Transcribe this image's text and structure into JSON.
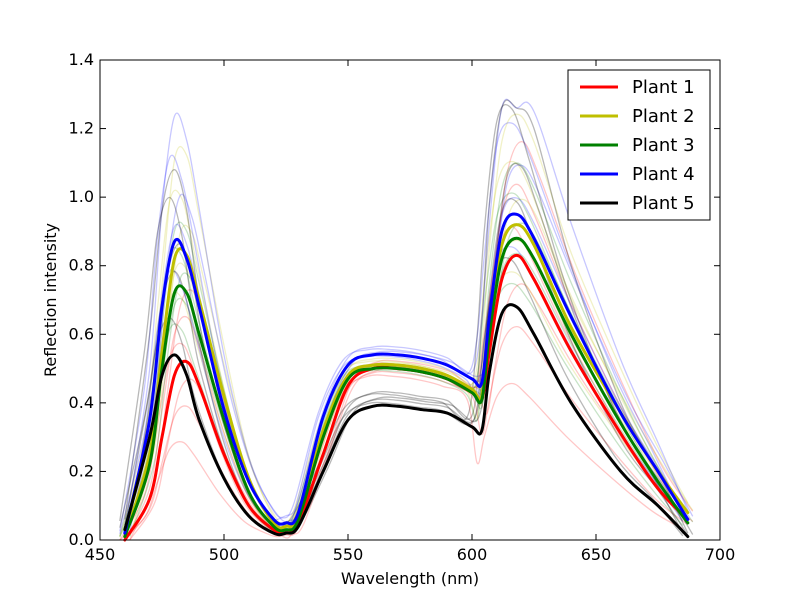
{
  "chart_data": {
    "type": "line",
    "xlabel": "Wavelength (nm)",
    "ylabel": "Reflection intensity",
    "xlim": [
      450,
      700
    ],
    "ylim": [
      0.0,
      1.4
    ],
    "x_ticks": [
      "450",
      "500",
      "550",
      "600",
      "650",
      "700"
    ],
    "y_ticks": [
      "0.0",
      "0.2",
      "0.4",
      "0.6",
      "0.8",
      "1.0",
      "1.2",
      "1.4"
    ],
    "grid": false,
    "legend_position": "top-right",
    "x": [
      460,
      470,
      475,
      480,
      485,
      490,
      500,
      510,
      520,
      525,
      530,
      540,
      550,
      560,
      570,
      580,
      590,
      600,
      604,
      607,
      612,
      618,
      625,
      640,
      660,
      675,
      687
    ],
    "series": [
      {
        "name": "Plant 1",
        "color": "#ff0000",
        "values": [
          0.0,
          0.12,
          0.3,
          0.48,
          0.52,
          0.45,
          0.25,
          0.1,
          0.03,
          0.02,
          0.05,
          0.25,
          0.45,
          0.5,
          0.5,
          0.49,
          0.47,
          0.43,
          0.41,
          0.55,
          0.76,
          0.83,
          0.76,
          0.55,
          0.31,
          0.15,
          0.06
        ]
      },
      {
        "name": "Plant 2",
        "color": "#bfbf00",
        "values": [
          0.01,
          0.25,
          0.55,
          0.82,
          0.83,
          0.7,
          0.42,
          0.18,
          0.05,
          0.04,
          0.07,
          0.32,
          0.48,
          0.51,
          0.51,
          0.5,
          0.48,
          0.44,
          0.42,
          0.63,
          0.86,
          0.92,
          0.86,
          0.62,
          0.37,
          0.2,
          0.08
        ]
      },
      {
        "name": "Plant 3",
        "color": "#008000",
        "values": [
          0.01,
          0.22,
          0.5,
          0.72,
          0.72,
          0.6,
          0.35,
          0.14,
          0.04,
          0.03,
          0.06,
          0.3,
          0.47,
          0.5,
          0.5,
          0.49,
          0.47,
          0.43,
          0.41,
          0.6,
          0.82,
          0.88,
          0.82,
          0.6,
          0.34,
          0.17,
          0.05
        ]
      },
      {
        "name": "Plant 4",
        "color": "#0000ff",
        "values": [
          0.02,
          0.35,
          0.68,
          0.87,
          0.82,
          0.68,
          0.38,
          0.17,
          0.06,
          0.05,
          0.08,
          0.36,
          0.51,
          0.54,
          0.54,
          0.53,
          0.51,
          0.47,
          0.46,
          0.65,
          0.9,
          0.95,
          0.88,
          0.65,
          0.37,
          0.2,
          0.06
        ]
      },
      {
        "name": "Plant 5",
        "color": "#000000",
        "values": [
          0.03,
          0.3,
          0.48,
          0.54,
          0.48,
          0.35,
          0.18,
          0.07,
          0.02,
          0.02,
          0.04,
          0.2,
          0.35,
          0.39,
          0.39,
          0.38,
          0.37,
          0.33,
          0.32,
          0.49,
          0.66,
          0.68,
          0.6,
          0.4,
          0.2,
          0.1,
          0.01
        ]
      }
    ]
  }
}
